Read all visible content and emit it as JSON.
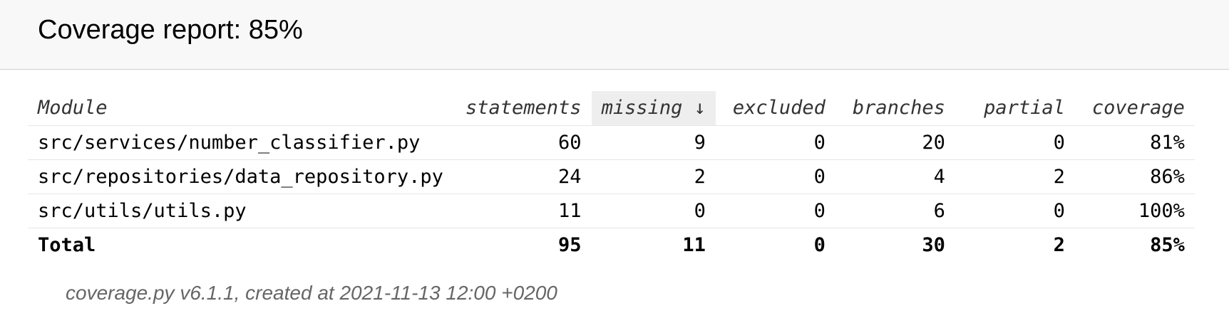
{
  "header": {
    "title": "Coverage report: 85%"
  },
  "table": {
    "columns": {
      "module": "Module",
      "statements": "statements",
      "missing": "missing ↓",
      "excluded": "excluded",
      "branches": "branches",
      "partial": "partial",
      "coverage": "coverage"
    },
    "rows": [
      {
        "module": "src/services/number_classifier.py",
        "statements": "60",
        "missing": "9",
        "excluded": "0",
        "branches": "20",
        "partial": "0",
        "coverage": "81%"
      },
      {
        "module": "src/repositories/data_repository.py",
        "statements": "24",
        "missing": "2",
        "excluded": "0",
        "branches": "4",
        "partial": "2",
        "coverage": "86%"
      },
      {
        "module": "src/utils/utils.py",
        "statements": "11",
        "missing": "0",
        "excluded": "0",
        "branches": "6",
        "partial": "0",
        "coverage": "100%"
      }
    ],
    "total": {
      "module": "Total",
      "statements": "95",
      "missing": "11",
      "excluded": "0",
      "branches": "30",
      "partial": "2",
      "coverage": "85%"
    },
    "sorted_column": "missing"
  },
  "footer": {
    "text": "coverage.py v6.1.1, created at 2021-11-13 12:00 +0200"
  }
}
